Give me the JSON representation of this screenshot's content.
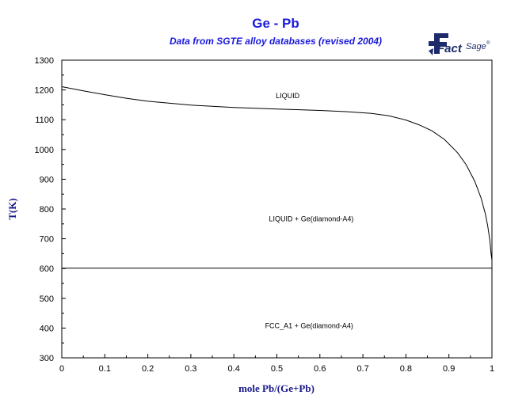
{
  "chart_data": {
    "type": "line",
    "title": "Ge - Pb",
    "subtitle": "Data from SGTE alloy databases (revised 2004)",
    "xlabel": "mole Pb/(Ge+Pb)",
    "ylabel": "T(K)",
    "xlim": [
      0,
      1
    ],
    "ylim": [
      300,
      1300
    ],
    "xticks": [
      "0",
      "0.1",
      "0.2",
      "0.3",
      "0.4",
      "0.5",
      "0.6",
      "0.7",
      "0.8",
      "0.9",
      "1"
    ],
    "yticks": [
      "300",
      "400",
      "500",
      "600",
      "700",
      "800",
      "900",
      "1000",
      "1100",
      "1200",
      "1300"
    ],
    "grid": false,
    "series": [
      {
        "name": "",
        "x": [
          0,
          0.05,
          0.1,
          0.15,
          0.2,
          0.3,
          0.4,
          0.5,
          0.6,
          0.66,
          0.72,
          0.76,
          0.8,
          0.83,
          0.86,
          0.89,
          0.92,
          0.94,
          0.96,
          0.975,
          0.985,
          0.99,
          0.995,
          0.998,
          1.0
        ],
        "y": [
          1211,
          1197,
          1184,
          1172,
          1162,
          1149,
          1141,
          1136,
          1131,
          1127,
          1121,
          1113,
          1099,
          1083,
          1063,
          1033,
          989,
          949,
          893,
          836,
          781,
          744,
          696,
          650,
          628
        ]
      },
      {
        "name": "",
        "x": [
          0,
          1
        ],
        "y": [
          601,
          601
        ]
      }
    ],
    "annotations": [
      {
        "text": "LIQUID",
        "x": 0.525,
        "y": 1180
      },
      {
        "text": "LIQUID + Ge(diamond-A4)",
        "x": 0.58,
        "y": 767
      },
      {
        "text": "FCC_A1 + Ge(diamond-A4)",
        "x": 0.575,
        "y": 408
      }
    ],
    "logo": {
      "main": "Fact",
      "secondary": "Sage",
      "mark": "®"
    }
  }
}
